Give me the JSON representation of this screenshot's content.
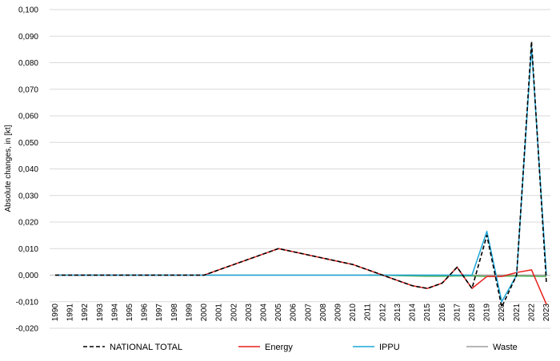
{
  "chart_data": {
    "type": "line",
    "title": "",
    "xlabel": "",
    "ylabel": "Absolute changes, in [kt]",
    "ylim": [
      -0.02,
      0.1
    ],
    "yticks": [
      -0.02,
      -0.01,
      0.0,
      0.01,
      0.02,
      0.03,
      0.04,
      0.05,
      0.06,
      0.07,
      0.08,
      0.09,
      0.1
    ],
    "ytick_labels": [
      "-0,020",
      "-0,010",
      "0,000",
      "0,010",
      "0,020",
      "0,030",
      "0,040",
      "0,050",
      "0,060",
      "0,070",
      "0,080",
      "0,090",
      "0,100"
    ],
    "grid": "horizontal",
    "legend_position": "bottom",
    "categories": [
      "1990",
      "1991",
      "1992",
      "1993",
      "1994",
      "1995",
      "1996",
      "1997",
      "1998",
      "1999",
      "2000",
      "2001",
      "2002",
      "2003",
      "2004",
      "2005",
      "2006",
      "2007",
      "2008",
      "2009",
      "2010",
      "2011",
      "2012",
      "2013",
      "2014",
      "2015",
      "2016",
      "2017",
      "2018",
      "2019",
      "2020",
      "2021",
      "2022",
      "2023"
    ],
    "series": [
      {
        "name": "NATIONAL TOTAL",
        "color": "#000000",
        "dash": "dashed",
        "values": [
          0,
          0,
          0,
          0,
          0,
          0,
          0,
          0,
          0,
          0,
          0,
          0.002,
          0.004,
          0.006,
          0.008,
          0.01,
          0.0088,
          0.0076,
          0.0064,
          0.0052,
          0.004,
          0.002,
          0,
          -0.002,
          -0.004,
          -0.005,
          -0.003,
          0.003,
          -0.005,
          0.015,
          -0.012,
          0.0,
          0.088,
          -0.003
        ]
      },
      {
        "name": "Energy",
        "color": "#e8201c",
        "dash": "solid",
        "values": [
          0,
          0,
          0,
          0,
          0,
          0,
          0,
          0,
          0,
          0,
          0,
          0.002,
          0.004,
          0.006,
          0.008,
          0.01,
          0.0088,
          0.0076,
          0.0064,
          0.0052,
          0.004,
          0.002,
          0,
          -0.002,
          -0.004,
          -0.005,
          -0.003,
          0.003,
          -0.005,
          -0.0005,
          -0.0005,
          0.001,
          0.002,
          -0.011
        ]
      },
      {
        "name": "IPPU",
        "color": "#1aa7d9",
        "dash": "solid",
        "values": [
          0,
          0,
          0,
          0,
          0,
          0,
          0,
          0,
          0,
          0,
          0,
          0,
          0,
          0,
          0,
          0,
          0,
          0,
          0,
          0,
          0,
          0,
          0,
          0,
          0,
          0,
          0,
          0.0,
          0.0,
          0.0165,
          -0.01,
          0.0,
          0.086,
          0.0
        ]
      },
      {
        "name": "Waste",
        "color": "#9e9e9e",
        "dash": "solid",
        "values": [
          0,
          0,
          0,
          0,
          0,
          0,
          0,
          0,
          0,
          0,
          0,
          0,
          0,
          0,
          0,
          0,
          0,
          0,
          0,
          0,
          0,
          0,
          0,
          0,
          0,
          0,
          0,
          0,
          0,
          0,
          0,
          0,
          0,
          0
        ]
      },
      {
        "name": "",
        "color": "#4caf50",
        "dash": "solid",
        "values": [
          null,
          null,
          null,
          null,
          null,
          null,
          null,
          null,
          null,
          null,
          null,
          null,
          null,
          null,
          null,
          null,
          null,
          null,
          null,
          null,
          null,
          0,
          0,
          -0.0002,
          -0.0003,
          -0.0004,
          -0.0004,
          -0.0003,
          -0.0003,
          -0.0005,
          -0.0004,
          -0.0003,
          -0.0004,
          -0.0005
        ]
      }
    ],
    "legend": [
      "NATIONAL TOTAL",
      "Energy",
      "IPPU",
      "Waste"
    ]
  }
}
